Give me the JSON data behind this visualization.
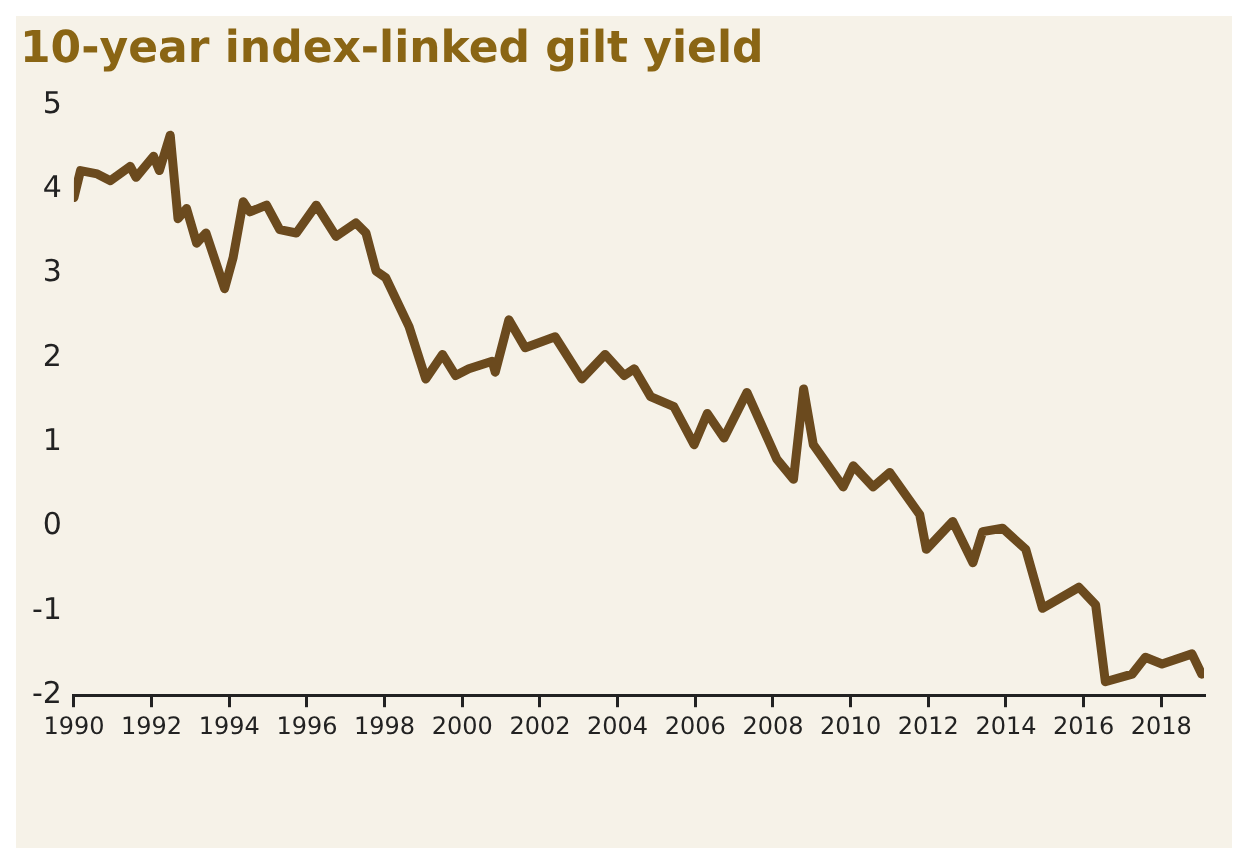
{
  "chart_data": {
    "type": "line",
    "title": "10-year index-linked gilt yield",
    "x": [
      1990.0,
      1990.17,
      1990.6,
      1990.94,
      1991.45,
      1991.6,
      1992.05,
      1992.2,
      1992.48,
      1992.68,
      1992.9,
      1993.16,
      1993.4,
      1993.88,
      1994.1,
      1994.36,
      1994.53,
      1994.96,
      1995.3,
      1995.73,
      1996.24,
      1996.75,
      1997.26,
      1997.52,
      1997.78,
      1998.03,
      1998.63,
      1999.06,
      1999.49,
      1999.83,
      2000.17,
      2000.77,
      2000.85,
      2001.2,
      2001.62,
      2002.39,
      2003.08,
      2003.68,
      2004.17,
      2004.43,
      2004.85,
      2005.45,
      2005.97,
      2006.31,
      2006.74,
      2007.33,
      2008.1,
      2008.53,
      2008.79,
      2009.04,
      2009.81,
      2010.07,
      2010.58,
      2011.01,
      2011.78,
      2011.95,
      2012.63,
      2013.15,
      2013.4,
      2013.91,
      2014.51,
      2014.94,
      2015.88,
      2016.31,
      2016.56,
      2017.25,
      2017.59,
      2018.02,
      2018.79,
      2019.04
    ],
    "series": [
      {
        "color": "#6b4a1e",
        "values": [
          3.9,
          4.22,
          4.18,
          4.1,
          4.27,
          4.14,
          4.39,
          4.22,
          4.64,
          3.65,
          3.77,
          3.36,
          3.48,
          2.82,
          3.19,
          3.85,
          3.73,
          3.81,
          3.52,
          3.48,
          3.81,
          3.44,
          3.6,
          3.48,
          3.03,
          2.95,
          2.37,
          1.75,
          2.04,
          1.79,
          1.87,
          1.96,
          1.83,
          2.45,
          2.12,
          2.25,
          1.75,
          2.04,
          1.79,
          1.87,
          1.54,
          1.42,
          0.97,
          1.34,
          1.05,
          1.59,
          0.8,
          0.56,
          1.63,
          0.97,
          0.47,
          0.72,
          0.47,
          0.64,
          0.14,
          -0.27,
          0.06,
          -0.43,
          -0.06,
          -0.02,
          -0.27,
          -0.97,
          -0.72,
          -0.93,
          -1.84,
          -1.75,
          -1.55,
          -1.63,
          -1.51,
          -1.75
        ]
      }
    ],
    "xlim": [
      1990,
      2019.1
    ],
    "xticks": [
      1990,
      1992,
      1994,
      1996,
      1998,
      2000,
      2002,
      2004,
      2006,
      2008,
      2010,
      2012,
      2014,
      2016,
      2018
    ],
    "ylim": [
      -2,
      5
    ],
    "yticks": [
      -2,
      -1,
      0,
      1,
      2,
      3,
      4,
      5
    ],
    "grid": false,
    "legend": false,
    "marker": "none",
    "line_style": "solid"
  }
}
